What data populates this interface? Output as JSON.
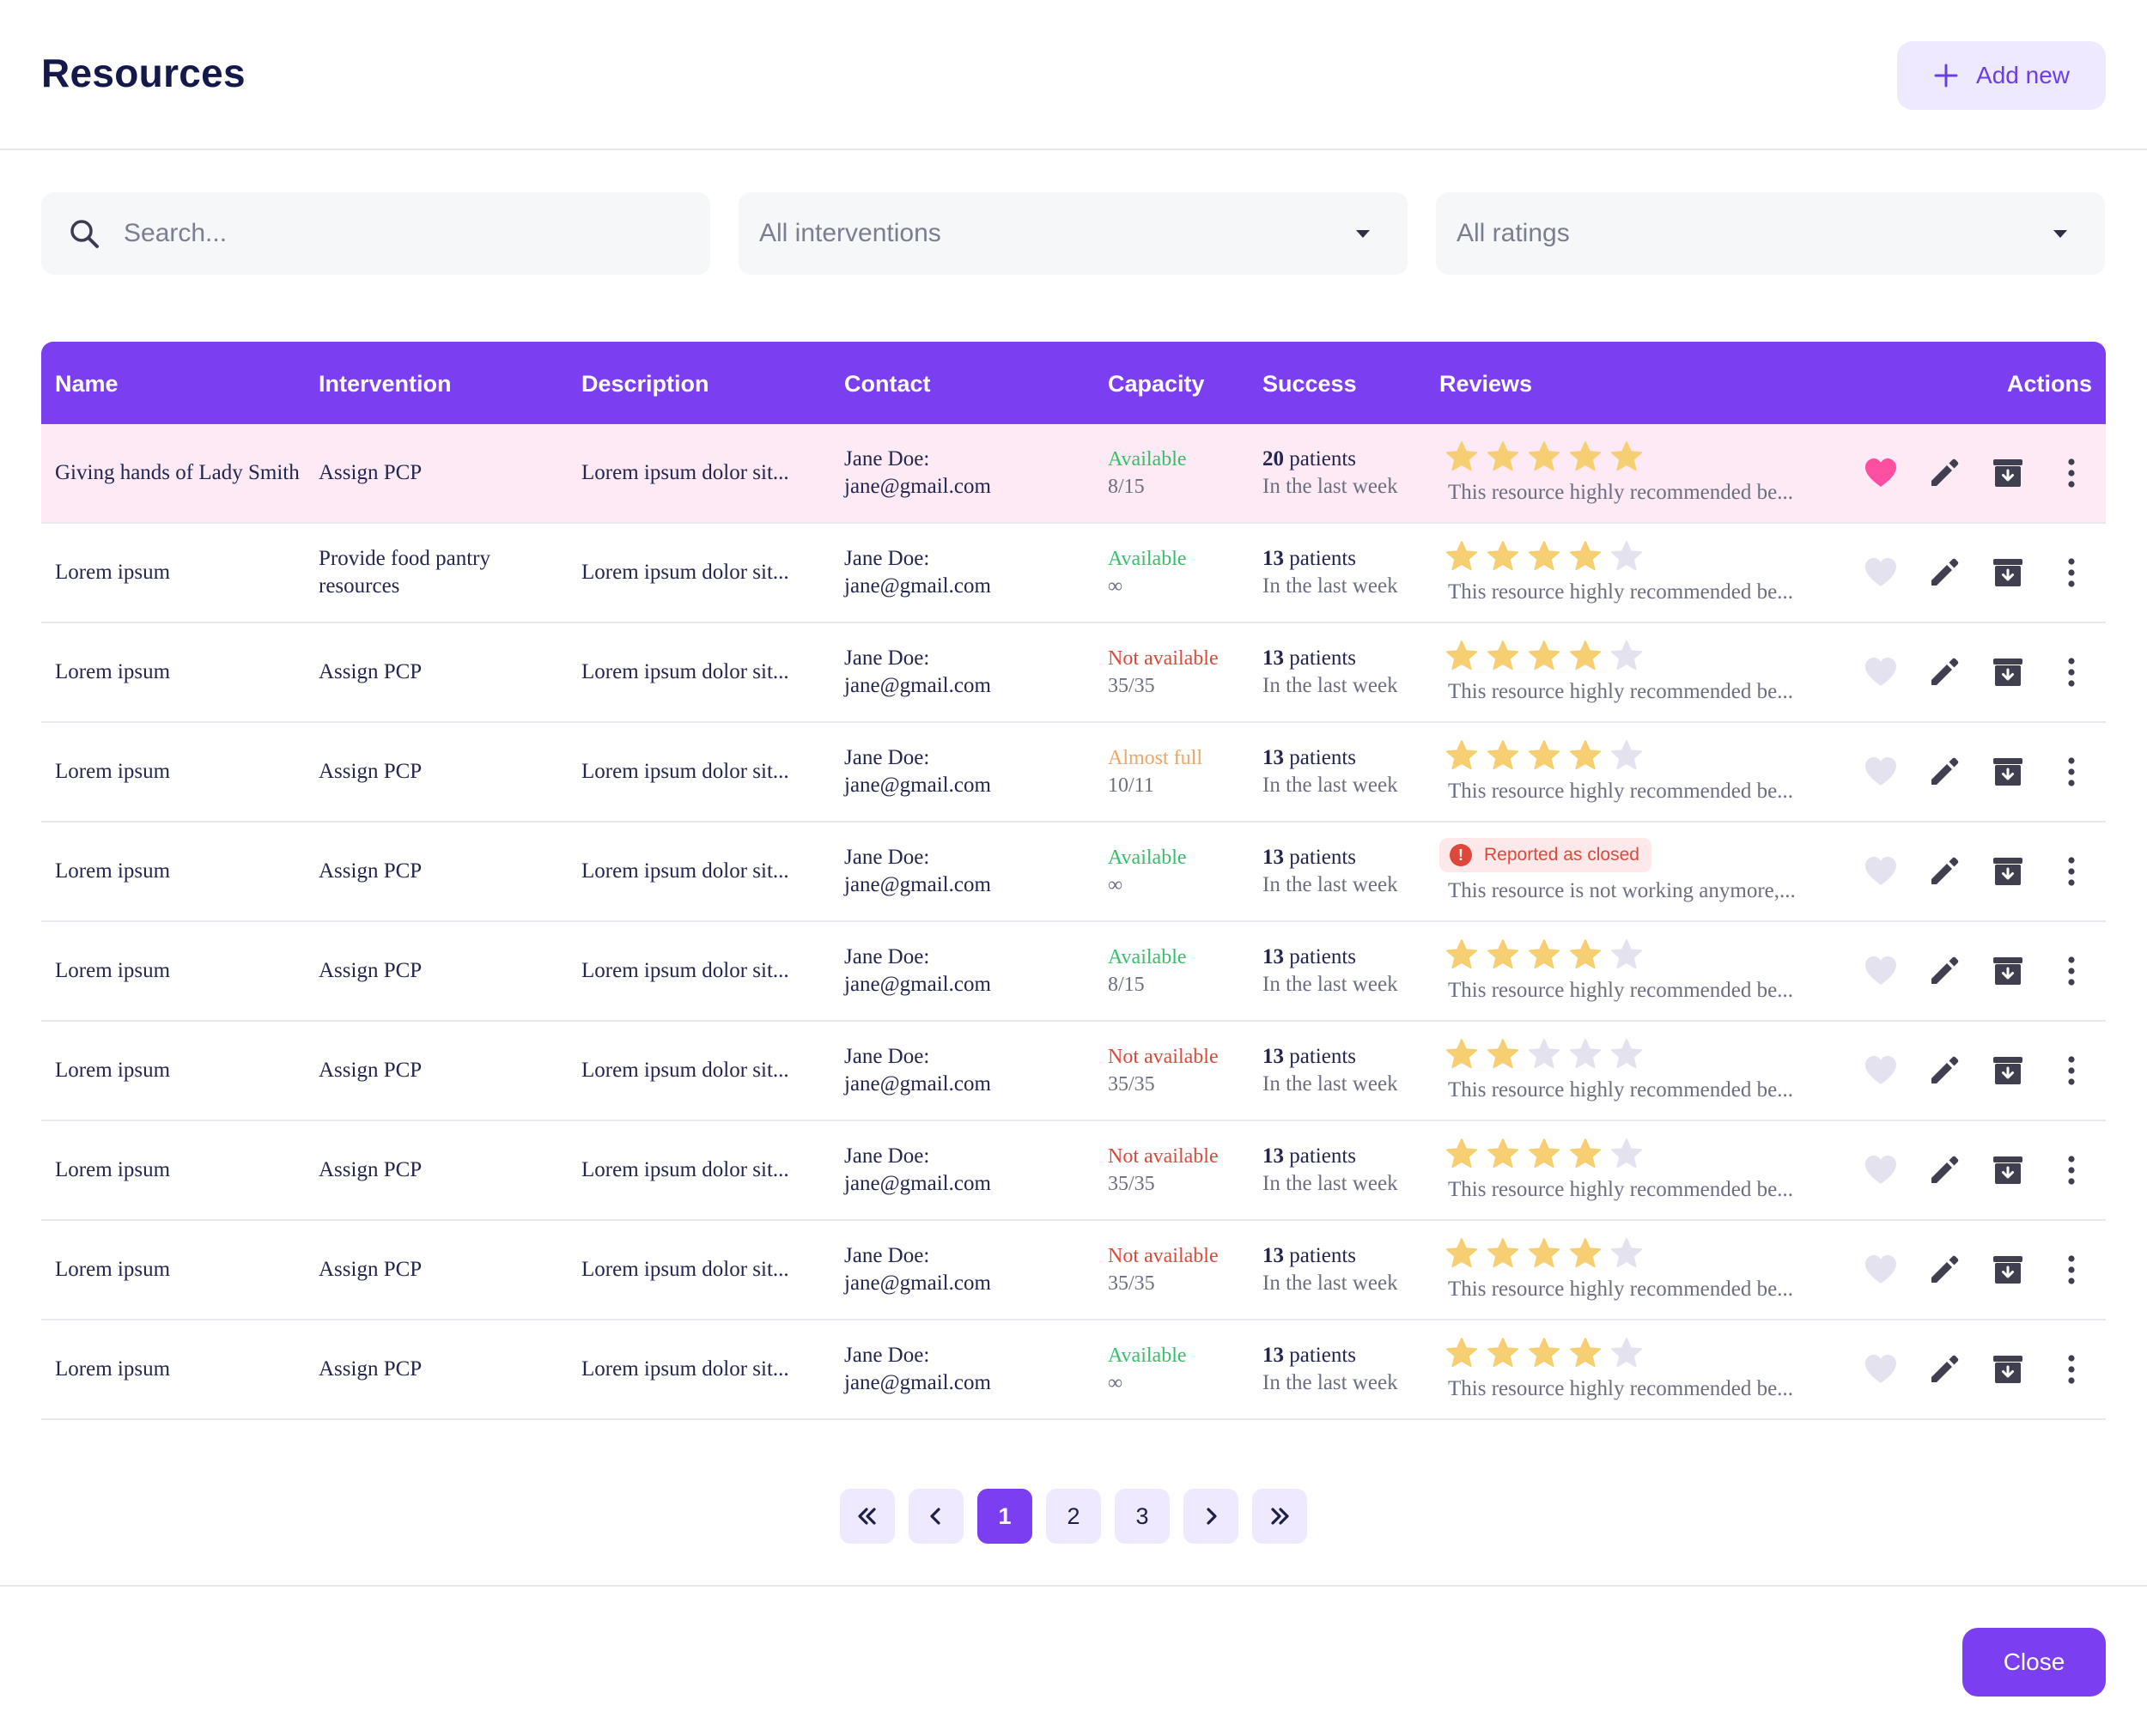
{
  "header": {
    "title": "Resources",
    "add_label": "Add new"
  },
  "filters": {
    "search_placeholder": "Search...",
    "interventions": "All interventions",
    "ratings": "All ratings"
  },
  "columns": {
    "name": "Name",
    "intervention": "Intervention",
    "description": "Description",
    "contact": "Contact",
    "capacity": "Capacity",
    "success": "Success",
    "reviews": "Reviews",
    "actions": "Actions"
  },
  "colors": {
    "accent": "#7b3ef0",
    "star_on": "#f5cf72",
    "star_off": "#e3e2ee",
    "heart_on": "#ff4fa3",
    "heart_off": "#e3e2ee"
  },
  "rows": [
    {
      "name": "Giving hands of Lady Smith",
      "intervention": "Assign PCP",
      "description": "Lorem ipsum dolor sit...",
      "contact_name": "Jane Doe:",
      "contact_email": "jane@gmail.com",
      "capacity_status": "Available",
      "status_kind": "green",
      "capacity_value": "8/15",
      "success_count": "20",
      "success_unit": "patients",
      "success_period": "In the last week",
      "rating": 5,
      "review": "This resource highly recommended be...",
      "favorite": true
    },
    {
      "name": "Lorem ipsum",
      "intervention": "Provide food pantry resources",
      "description": "Lorem ipsum dolor sit...",
      "contact_name": "Jane Doe:",
      "contact_email": "jane@gmail.com",
      "capacity_status": "Available",
      "status_kind": "green",
      "capacity_value": "∞",
      "success_count": "13",
      "success_unit": "patients",
      "success_period": "In the last week",
      "rating": 4,
      "review": "This resource highly recommended be...",
      "favorite": false
    },
    {
      "name": "Lorem ipsum",
      "intervention": "Assign PCP",
      "description": "Lorem ipsum dolor sit...",
      "contact_name": "Jane Doe:",
      "contact_email": "jane@gmail.com",
      "capacity_status": "Not available",
      "status_kind": "red",
      "capacity_value": "35/35",
      "success_count": "13",
      "success_unit": "patients",
      "success_period": "In the last week",
      "rating": 4,
      "review": "This resource highly recommended be...",
      "favorite": false
    },
    {
      "name": "Lorem ipsum",
      "intervention": "Assign PCP",
      "description": "Lorem ipsum dolor sit...",
      "contact_name": "Jane Doe:",
      "contact_email": "jane@gmail.com",
      "capacity_status": "Almost full",
      "status_kind": "orange",
      "capacity_value": "10/11",
      "success_count": "13",
      "success_unit": "patients",
      "success_period": "In the last week",
      "rating": 4,
      "review": "This resource highly recommended be...",
      "favorite": false
    },
    {
      "name": "Lorem ipsum",
      "intervention": "Assign PCP",
      "description": "Lorem ipsum dolor sit...",
      "contact_name": "Jane Doe:",
      "contact_email": "jane@gmail.com",
      "capacity_status": "Available",
      "status_kind": "green",
      "capacity_value": "∞",
      "success_count": "13",
      "success_unit": "patients",
      "success_period": "In the last week",
      "rating": 0,
      "badge": "Reported as closed",
      "review": "This resource is not working anymore,...",
      "favorite": false
    },
    {
      "name": "Lorem ipsum",
      "intervention": "Assign PCP",
      "description": "Lorem ipsum dolor sit...",
      "contact_name": "Jane Doe:",
      "contact_email": "jane@gmail.com",
      "capacity_status": "Available",
      "status_kind": "green",
      "capacity_value": "8/15",
      "success_count": "13",
      "success_unit": "patients",
      "success_period": "In the last week",
      "rating": 4,
      "review": "This resource highly recommended be...",
      "favorite": false
    },
    {
      "name": "Lorem ipsum",
      "intervention": "Assign PCP",
      "description": "Lorem ipsum dolor sit...",
      "contact_name": "Jane Doe:",
      "contact_email": "jane@gmail.com",
      "capacity_status": "Not available",
      "status_kind": "red",
      "capacity_value": "35/35",
      "success_count": "13",
      "success_unit": "patients",
      "success_period": "In the last week",
      "rating": 2,
      "review": "This resource highly recommended be...",
      "favorite": false
    },
    {
      "name": "Lorem ipsum",
      "intervention": "Assign PCP",
      "description": "Lorem ipsum dolor sit...",
      "contact_name": "Jane Doe:",
      "contact_email": "jane@gmail.com",
      "capacity_status": "Not available",
      "status_kind": "red",
      "capacity_value": "35/35",
      "success_count": "13",
      "success_unit": "patients",
      "success_period": "In the last week",
      "rating": 4,
      "review": "This resource highly recommended be...",
      "favorite": false
    },
    {
      "name": "Lorem ipsum",
      "intervention": "Assign PCP",
      "description": "Lorem ipsum dolor sit...",
      "contact_name": "Jane Doe:",
      "contact_email": "jane@gmail.com",
      "capacity_status": "Not available",
      "status_kind": "red",
      "capacity_value": "35/35",
      "success_count": "13",
      "success_unit": "patients",
      "success_period": "In the last week",
      "rating": 4,
      "review": "This resource highly recommended be...",
      "favorite": false
    },
    {
      "name": "Lorem ipsum",
      "intervention": "Assign PCP",
      "description": "Lorem ipsum dolor sit...",
      "contact_name": "Jane Doe:",
      "contact_email": "jane@gmail.com",
      "capacity_status": "Available",
      "status_kind": "green",
      "capacity_value": "∞",
      "success_count": "13",
      "success_unit": "patients",
      "success_period": "In the last week",
      "rating": 4,
      "review": "This resource highly recommended be...",
      "favorite": false
    }
  ],
  "pagination": {
    "pages": [
      "1",
      "2",
      "3"
    ],
    "current": "1"
  },
  "footer": {
    "close_label": "Close"
  }
}
